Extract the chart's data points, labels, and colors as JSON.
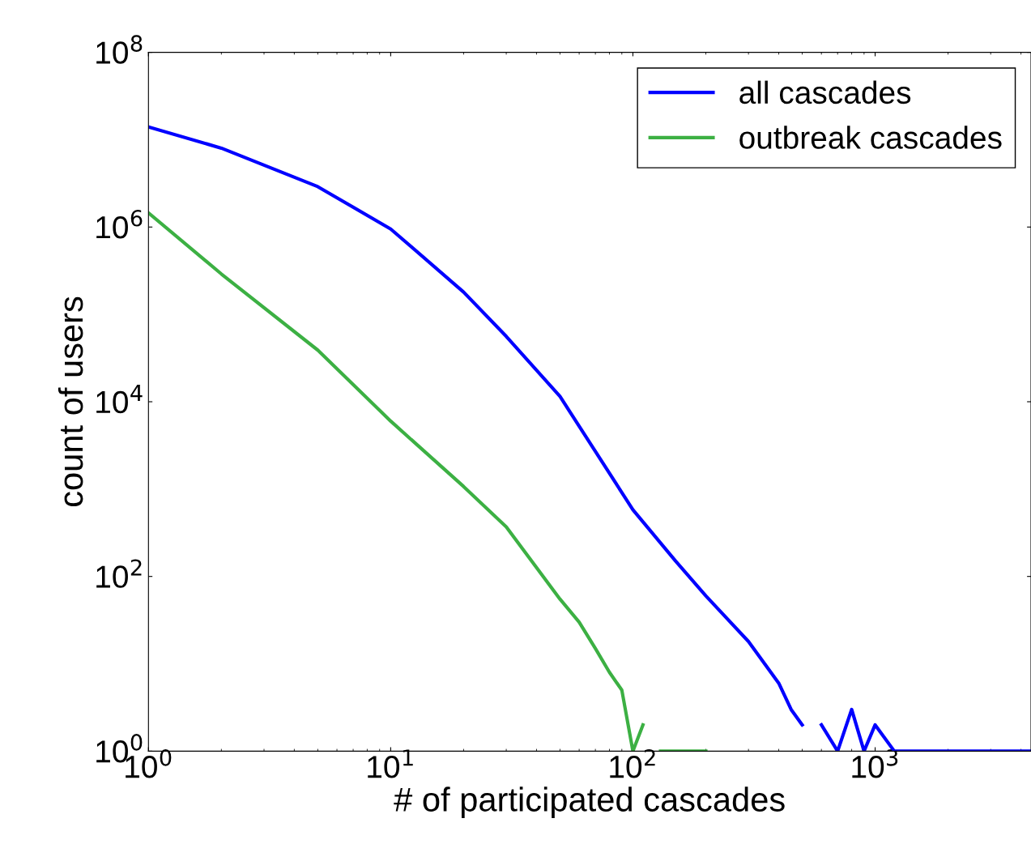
{
  "chart_data": {
    "type": "line",
    "xlabel": "# of participated cascades",
    "ylabel": "count of users",
    "log": "xy",
    "legend": "top right",
    "grid": false,
    "xlim": [
      1,
      4400
    ],
    "ylim": [
      1,
      100000000
    ],
    "xticks": [
      {
        "value": 1,
        "label": "10$^{0}$"
      },
      {
        "value": 10,
        "label": "10$^{1}$"
      },
      {
        "value": 100,
        "label": "10$^{2}$"
      },
      {
        "value": 1000,
        "label": "10$^{3}$"
      }
    ],
    "yticks": [
      {
        "value": 1,
        "label": "10$^{0}$"
      },
      {
        "value": 100,
        "label": "10$^{2}$"
      },
      {
        "value": 10000,
        "label": "10$^{4}$"
      },
      {
        "value": 1000000,
        "label": "10$^{6}$"
      },
      {
        "value": 100000000,
        "label": "10$^{8}$"
      }
    ],
    "series": [
      {
        "name": "all cascades",
        "color": "#0000ff",
        "x": [
          1,
          2,
          5,
          10,
          20,
          30,
          50,
          100,
          150,
          200,
          300,
          400,
          450,
          500,
          550,
          600,
          700,
          800,
          900,
          1000,
          1200,
          1500,
          2000,
          2500,
          3000,
          4400
        ],
        "values": [
          14000000,
          8000000,
          2900000,
          950000,
          180000,
          56000,
          11500,
          580,
          150,
          60,
          18,
          6,
          3,
          2,
          null,
          2,
          1,
          3,
          1,
          2,
          1,
          1,
          1,
          1,
          1,
          1
        ]
      },
      {
        "name": "outbreak cascades",
        "color": "#3cb043",
        "x": [
          1,
          2,
          5,
          10,
          20,
          30,
          40,
          50,
          60,
          70,
          80,
          90,
          100,
          110,
          120,
          130,
          150,
          200
        ],
        "values": [
          1450000,
          290000,
          39000,
          6000,
          1070,
          370,
          126,
          55,
          30,
          15,
          8,
          5,
          1,
          2,
          null,
          1,
          1,
          1
        ]
      }
    ]
  }
}
